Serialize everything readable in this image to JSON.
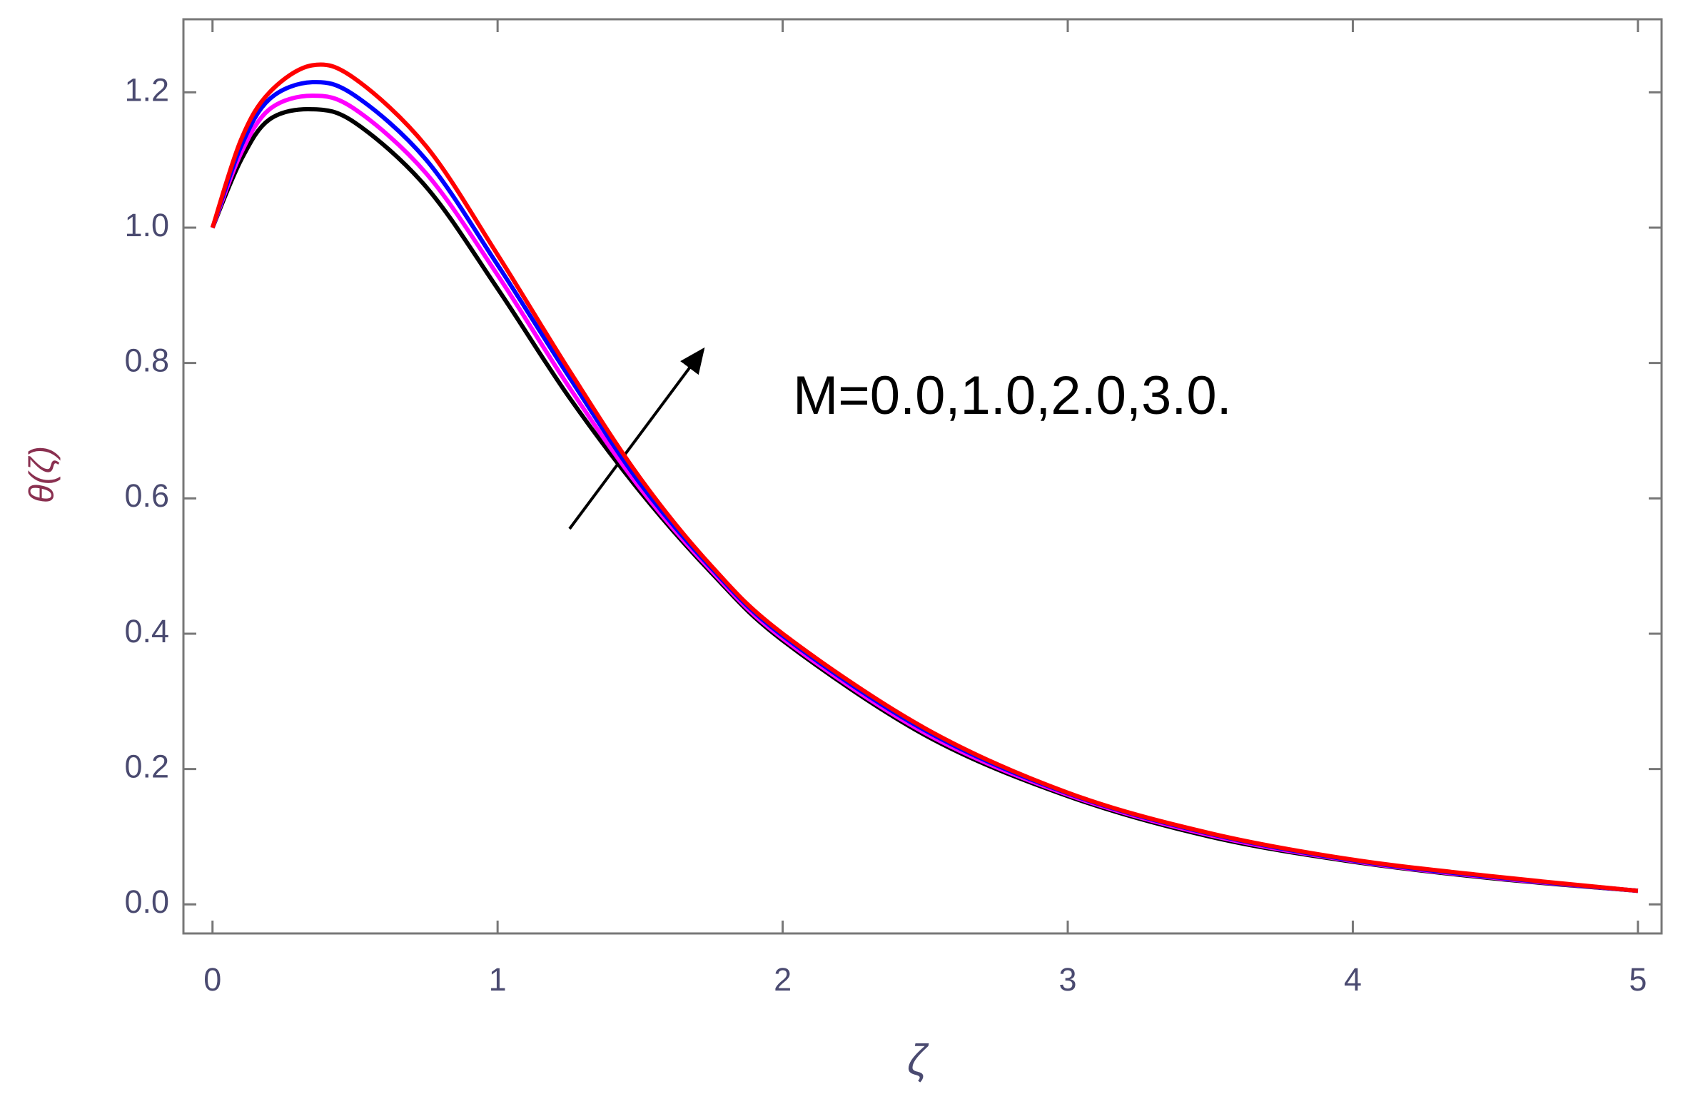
{
  "chart_data": {
    "type": "line",
    "x": [
      0,
      0.1,
      0.2,
      0.35,
      0.5,
      0.75,
      1,
      1.25,
      1.5,
      1.75,
      2,
      2.5,
      3,
      3.5,
      4,
      4.5,
      5
    ],
    "series": [
      {
        "color": "#000000",
        "values": [
          1.0,
          1.1,
          1.16,
          1.175,
          1.155,
          1.06,
          0.91,
          0.75,
          0.61,
          0.49,
          0.39,
          0.25,
          0.16,
          0.1,
          0.063,
          0.038,
          0.02
        ]
      },
      {
        "color": "#ff00ff",
        "values": [
          1.0,
          1.11,
          1.175,
          1.195,
          1.175,
          1.08,
          0.93,
          0.765,
          0.615,
          0.493,
          0.393,
          0.253,
          0.162,
          0.102,
          0.064,
          0.039,
          0.02
        ]
      },
      {
        "color": "#0000ff",
        "values": [
          1.0,
          1.12,
          1.19,
          1.215,
          1.195,
          1.1,
          0.945,
          0.78,
          0.622,
          0.497,
          0.397,
          0.257,
          0.164,
          0.104,
          0.065,
          0.04,
          0.02
        ]
      },
      {
        "color": "#ff0000",
        "values": [
          1.0,
          1.13,
          1.2,
          1.24,
          1.22,
          1.12,
          0.96,
          0.79,
          0.63,
          0.5,
          0.4,
          0.26,
          0.165,
          0.105,
          0.066,
          0.041,
          0.02
        ]
      }
    ],
    "xlabel": "ζ",
    "ylabel": "θ(ζ)",
    "annotation": "M=0.0,1.0,2.0,3.0.",
    "xlim": [
      -0.102,
      5.083
    ],
    "ylim": [
      -0.043,
      1.308
    ],
    "xticks": [
      0,
      1,
      2,
      3,
      4,
      5
    ],
    "yticks": [
      {
        "value": 0,
        "label": "0.0"
      },
      {
        "value": 0.2,
        "label": "0.2"
      },
      {
        "value": 0.4,
        "label": "0.4"
      },
      {
        "value": 0.6,
        "label": "0.6"
      },
      {
        "value": 0.8,
        "label": "0.8"
      },
      {
        "value": 1,
        "label": "1.0"
      },
      {
        "value": 1.2,
        "label": "1.2"
      }
    ]
  }
}
